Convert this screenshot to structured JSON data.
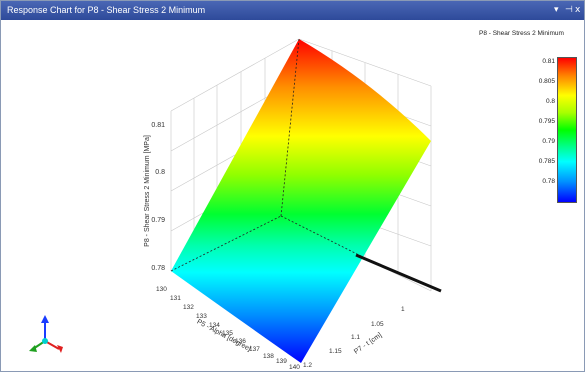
{
  "window": {
    "title": "Response Chart for P8 - Shear Stress 2 Minimum",
    "controls": {
      "pin": "▾",
      "dock": "⊣",
      "close": "x"
    }
  },
  "legend": {
    "title": "P8 - Shear Stress 2 Minimum",
    "ticks": [
      "0.81",
      "0.805",
      "0.8",
      "0.795",
      "0.79",
      "0.785",
      "0.78"
    ]
  },
  "axes": {
    "z_label": "P8 - Shear Stress 2 Minimum  [MPa]",
    "z_ticks": [
      "0.81",
      "0.8",
      "0.79",
      "0.78"
    ],
    "x_label": "P5 - Alpha  [degree]",
    "x_ticks": [
      "130",
      "131",
      "132",
      "133",
      "134",
      "135",
      "136",
      "137",
      "138",
      "139",
      "140"
    ],
    "y_label": "P7 - t  [cm]",
    "y_ticks": [
      "1",
      "1.05",
      "1.1",
      "1.15",
      "1.2"
    ]
  },
  "colors": {
    "title_bar": "#2e4a9a",
    "surface_high": "#ff0000",
    "surface_low": "#0000ff"
  }
}
